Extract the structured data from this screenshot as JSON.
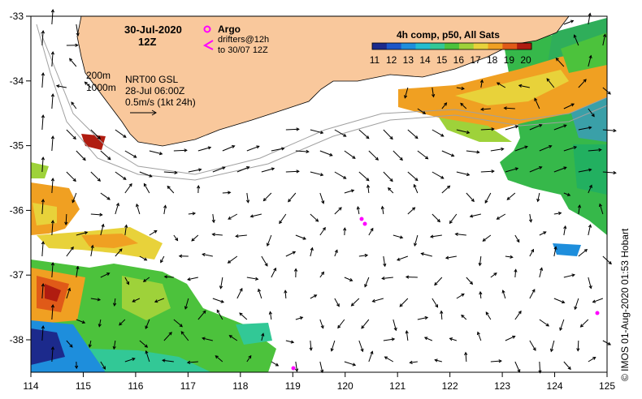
{
  "title": {
    "date": "30-Jul-2020",
    "time": "12Z"
  },
  "legend": {
    "argo_label": "Argo",
    "drifters_line1": "drifters@12h",
    "drifters_line2": "to 30/07 12Z"
  },
  "colorbar": {
    "title": "4h comp, p50, All Sats",
    "ticks": [
      "11",
      "12",
      "13",
      "14",
      "15",
      "16",
      "17",
      "18",
      "19",
      "20"
    ],
    "colors": [
      "#1c2a8c",
      "#1c56c8",
      "#1e8edc",
      "#24bcd0",
      "#32c896",
      "#4cc23c",
      "#9ed23a",
      "#e8d23a",
      "#f0a022",
      "#e05a18",
      "#b01c10"
    ]
  },
  "annotations": {
    "isobath_200": "200m",
    "isobath_1000": "1000m",
    "product": "NRT00 GSL",
    "product_time": "28-Jul 06:00Z",
    "scale": "0.5m/s (1kt 24h)"
  },
  "credit": "© IMOS 01-Aug-2020 01:53 Hobart",
  "axes": {
    "lon_ticks": [
      "114",
      "115",
      "116",
      "117",
      "118",
      "119",
      "120",
      "121",
      "122",
      "123",
      "124",
      "125"
    ],
    "lat_ticks": [
      "-33",
      "-34",
      "-35",
      "-36",
      "-37",
      "-38"
    ]
  },
  "colors": {
    "land": "#f9c89c",
    "ocean": "#ffffff",
    "argo": "#ff00ff",
    "drifter": "#ff00ff"
  }
}
